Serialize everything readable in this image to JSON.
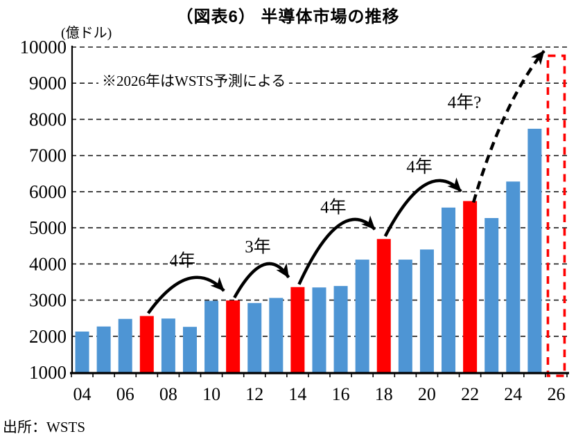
{
  "title": "（図表6） 半導体市場の推移",
  "y_unit_label": "(億ドル)",
  "note": "※2026年はWSTS予測による",
  "source": "出所：WSTS",
  "colors": {
    "bar_blue": "#4E95D4",
    "bar_red": "#FF0000",
    "forecast_outline": "#FF0000",
    "axis_black": "#000000",
    "gridline": "#1a1a1a"
  },
  "chart_data": {
    "type": "bar",
    "title": "（図表6） 半導体市場の推移",
    "ylabel": "(億ドル)",
    "xlabel": "",
    "categories": [
      "04",
      "05",
      "06",
      "07",
      "08",
      "09",
      "10",
      "11",
      "12",
      "13",
      "14",
      "15",
      "16",
      "17",
      "18",
      "19",
      "20",
      "21",
      "22",
      "23",
      "24",
      "25",
      "26"
    ],
    "values": [
      2130,
      2270,
      2480,
      2560,
      2490,
      2260,
      2980,
      2990,
      2920,
      3060,
      3360,
      3350,
      3390,
      4120,
      4690,
      4120,
      4400,
      5560,
      5740,
      5270,
      6280,
      7740,
      9760
    ],
    "highlight_categories": [
      "07",
      "11",
      "14",
      "18",
      "22"
    ],
    "forecast_category": "26",
    "ylim": [
      1000,
      10000
    ],
    "y_ticks": [
      1000,
      2000,
      3000,
      4000,
      5000,
      6000,
      7000,
      8000,
      9000,
      10000
    ],
    "x_tick_labels": [
      "04",
      "06",
      "08",
      "10",
      "12",
      "14",
      "16",
      "18",
      "20",
      "22",
      "24",
      "26"
    ],
    "grid": "horizontal-dashed",
    "legend": "none",
    "annotations": [
      {
        "label": "4年",
        "from": "07",
        "to": "11",
        "style": "solid"
      },
      {
        "label": "3年",
        "from": "11",
        "to": "14",
        "style": "solid"
      },
      {
        "label": "4年",
        "from": "14",
        "to": "18",
        "style": "solid"
      },
      {
        "label": "4年",
        "from": "18",
        "to": "22",
        "style": "solid"
      },
      {
        "label": "4年?",
        "from": "22",
        "to": "26",
        "style": "dashed"
      }
    ]
  }
}
